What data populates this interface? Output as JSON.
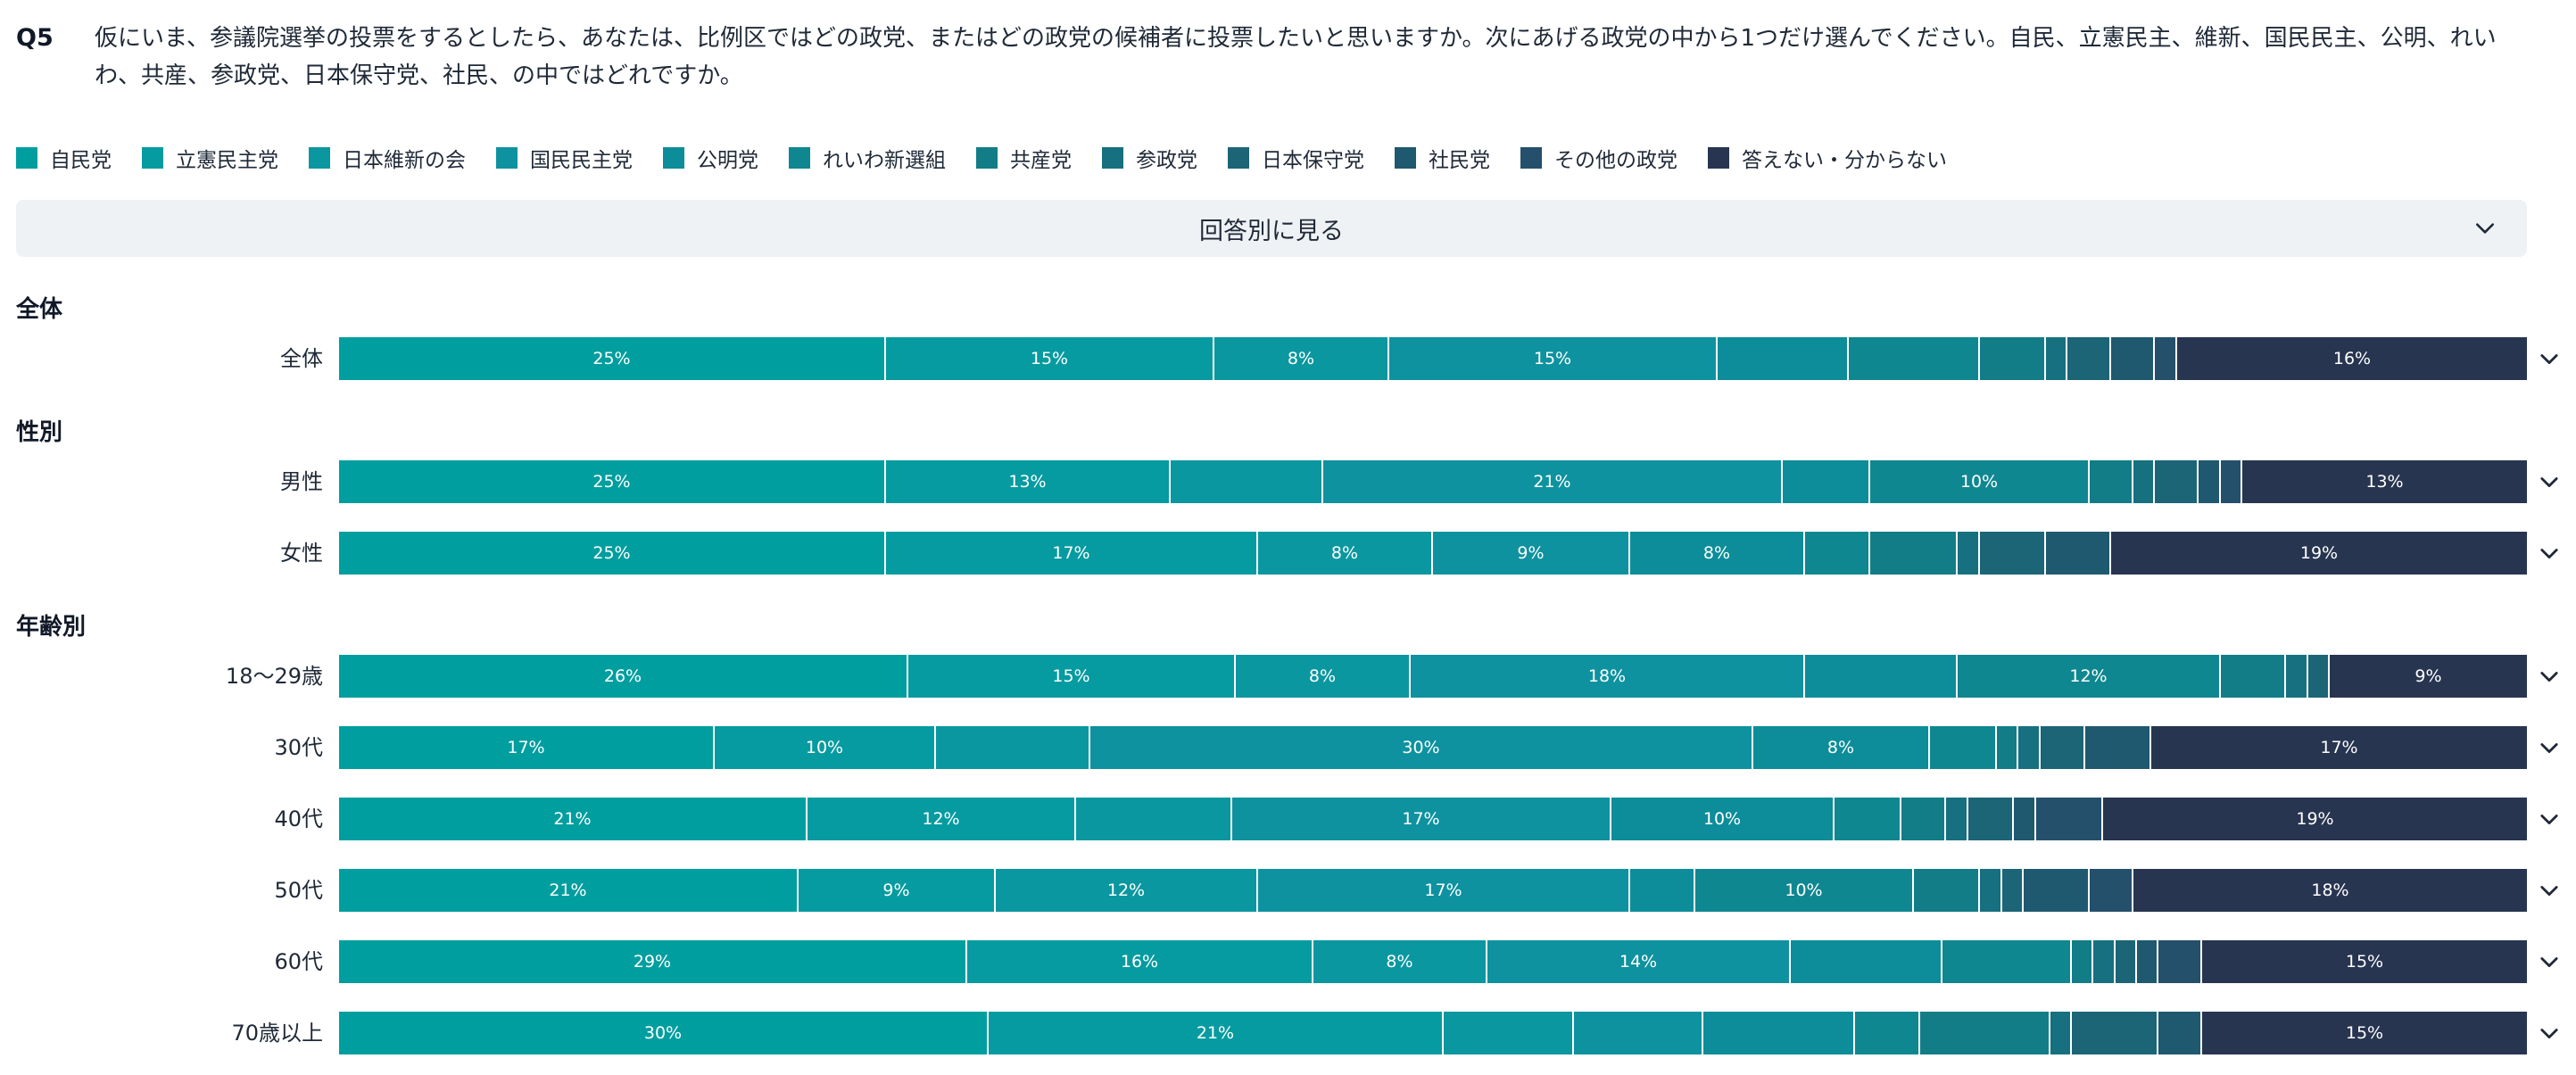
{
  "question": {
    "number": "Q5",
    "text": "仮にいま、参議院選挙の投票をするとしたら、あなたは、比例区ではどの政党、またはどの政党の候補者に投票したいと思いますか。次にあげる政党の中から1つだけ選んでください。自民、立憲民主、維新、国民民主、公明、れいわ、共産、参政党、日本保守党、社民、の中ではどれですか。"
  },
  "dropdown": {
    "label": "回答別に見る"
  },
  "colors": [
    "#009e9f",
    "#069ba0",
    "#0a97a0",
    "#0e929f",
    "#0c8d99",
    "#0f8790",
    "#127d87",
    "#16707f",
    "#1b6577",
    "#1f596f",
    "#24506b",
    "#283550"
  ],
  "chart_data": {
    "type": "bar",
    "orientation": "horizontal",
    "stacked": true,
    "normalized": true,
    "categories": [
      "自民党",
      "立憲民主党",
      "日本維新の会",
      "国民民主党",
      "公明党",
      "れいわ新選組",
      "共産党",
      "参政党",
      "日本保守党",
      "社民党",
      "その他の政党",
      "答えない・分からない"
    ],
    "groups": [
      {
        "title": "全体",
        "rows": [
          {
            "label": "全体",
            "values": [
              25,
              15,
              8,
              15,
              6,
              6,
              3,
              1,
              2,
              2,
              1,
              16
            ]
          }
        ]
      },
      {
        "title": "性別",
        "rows": [
          {
            "label": "男性",
            "values": [
              25,
              13,
              7,
              21,
              4,
              10,
              2,
              1,
              2,
              1,
              1,
              13
            ]
          },
          {
            "label": "女性",
            "values": [
              25,
              17,
              8,
              9,
              8,
              3,
              4,
              1,
              3,
              3,
              0,
              19
            ]
          }
        ]
      },
      {
        "title": "年齢別",
        "rows": [
          {
            "label": "18〜29歳",
            "values": [
              26,
              15,
              8,
              18,
              7,
              12,
              3,
              1,
              1,
              0,
              0,
              9
            ]
          },
          {
            "label": "30代",
            "values": [
              17,
              10,
              7,
              30,
              8,
              3,
              1,
              1,
              2,
              3,
              0,
              17
            ]
          },
          {
            "label": "40代",
            "values": [
              21,
              12,
              7,
              17,
              10,
              3,
              2,
              1,
              2,
              1,
              3,
              19
            ]
          },
          {
            "label": "50代",
            "values": [
              21,
              9,
              12,
              17,
              3,
              10,
              3,
              1,
              1,
              3,
              2,
              18
            ]
          },
          {
            "label": "60代",
            "values": [
              29,
              16,
              8,
              14,
              7,
              6,
              1,
              1,
              1,
              1,
              2,
              15
            ]
          },
          {
            "label": "70歳以上",
            "values": [
              30,
              21,
              6,
              6,
              7,
              3,
              6,
              1,
              4,
              2,
              0,
              15
            ]
          }
        ]
      }
    ],
    "value_suffix": "%",
    "label_min_value": 8,
    "xlim": [
      0,
      100
    ],
    "legend_position": "top",
    "grid": false
  }
}
